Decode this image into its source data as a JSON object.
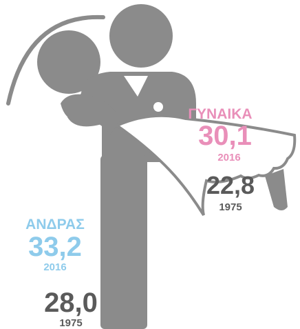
{
  "woman": {
    "label": "ΓΥΝΑΙΚΑ",
    "value_2016": "30,1",
    "year_2016": "2016",
    "value_1975": "22,8",
    "year_1975": "1975"
  },
  "man": {
    "label": "ΑΝΔΡΑΣ",
    "value_2016": "33,2",
    "year_2016": "2016",
    "value_1975": "28,0",
    "year_1975": "1975"
  }
}
